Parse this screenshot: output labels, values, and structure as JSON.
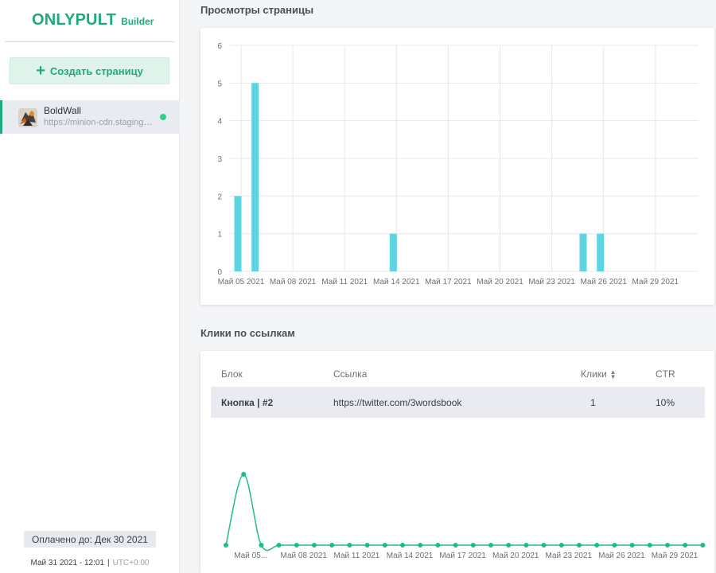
{
  "logo": {
    "main": "ONLYPULT",
    "sub": "Builder"
  },
  "sidebar": {
    "create_button": {
      "icon": "plus-icon",
      "label": "Создать страницу"
    },
    "pages": [
      {
        "name": "BoldWall",
        "url": "https://minion-cdn.staging.onlypult.com",
        "status": "active",
        "status_color": "#2ecc8f"
      }
    ],
    "paid_until": "Оплачено до: Дек 30 2021",
    "datetime": "Май 31 2021 - 12:01",
    "separator": "|",
    "timezone": "UTC+0:00"
  },
  "views_section": {
    "title": "Просмотры страницы"
  },
  "clicks_section": {
    "title": "Клики по ссылкам",
    "columns": {
      "block": "Блок",
      "link": "Ссылка",
      "clicks": "Клики",
      "ctr": "CTR"
    },
    "rows": [
      {
        "block": "Кнопка | #2",
        "link": "https://twitter.com/3wordsbook",
        "clicks": "1",
        "ctr": "10%"
      }
    ]
  },
  "colors": {
    "accent": "#1eaa7e",
    "bar": "#5cd5e0",
    "line": "#1ebc8c"
  },
  "chart_data": [
    {
      "type": "bar",
      "title": "Просмотры страницы",
      "x_start": "Май 05 2021",
      "x_tick_labels": [
        "Май 05 2021",
        "Май 08 2021",
        "Май 11 2021",
        "Май 14 2021",
        "Май 17 2021",
        "Май 20 2021",
        "Май 23 2021",
        "Май 26 2021",
        "Май 29 2021"
      ],
      "x_tick_dates": [
        "Май 05 2021",
        "Май 08 2021",
        "Май 11 2021",
        "Май 14 2021",
        "Май 17 2021",
        "Май 20 2021",
        "Май 23 2021",
        "Май 26 2021",
        "Май 29 2021"
      ],
      "y_tick_labels": [
        "0",
        "1",
        "2",
        "3",
        "4",
        "5",
        "6"
      ],
      "ylim": [
        0,
        6
      ],
      "grid": true,
      "series": [
        {
          "values": [
            {
              "x": "Май 05 2021",
              "y": 2
            },
            {
              "x": "Май 06 2021",
              "y": 5
            },
            {
              "x": "Май 14 2021",
              "y": 1
            },
            {
              "x": "Май 25 2021",
              "y": 1
            },
            {
              "x": "Май 26 2021",
              "y": 1
            }
          ]
        }
      ]
    },
    {
      "type": "line",
      "x_tick_labels": [
        "Май 05...",
        "Май 08 2021",
        "Май 11 2021",
        "Май 14 2021",
        "Май 17 2021",
        "Май 20 2021",
        "Май 23 2021",
        "Май 26 2021",
        "Май 29 2021"
      ],
      "x_tick_dates": [
        "Май 05 2021",
        "Май 08 2021",
        "Май 11 2021",
        "Май 14 2021",
        "Май 17 2021",
        "Май 20 2021",
        "Май 23 2021",
        "Май 26 2021",
        "Май 29 2021"
      ],
      "x": [
        "Май 04 2021",
        "Май 05 2021",
        "Май 06 2021",
        "Май 07 2021",
        "Май 08 2021",
        "Май 09 2021",
        "Май 10 2021",
        "Май 11 2021",
        "Май 12 2021",
        "Май 13 2021",
        "Май 14 2021",
        "Май 15 2021",
        "Май 16 2021",
        "Май 17 2021",
        "Май 18 2021",
        "Май 19 2021",
        "Май 20 2021",
        "Май 21 2021",
        "Май 22 2021",
        "Май 23 2021",
        "Май 24 2021",
        "Май 25 2021",
        "Май 26 2021",
        "Май 27 2021",
        "Май 28 2021",
        "Май 29 2021",
        "Май 30 2021",
        "Май 31 2021"
      ],
      "values": [
        0,
        1,
        0,
        0,
        0,
        0,
        0,
        0,
        0,
        0,
        0,
        0,
        0,
        0,
        0,
        0,
        0,
        0,
        0,
        0,
        0,
        0,
        0,
        0,
        0,
        0,
        0,
        0
      ],
      "ylim": [
        0,
        1
      ],
      "grid": false
    }
  ]
}
